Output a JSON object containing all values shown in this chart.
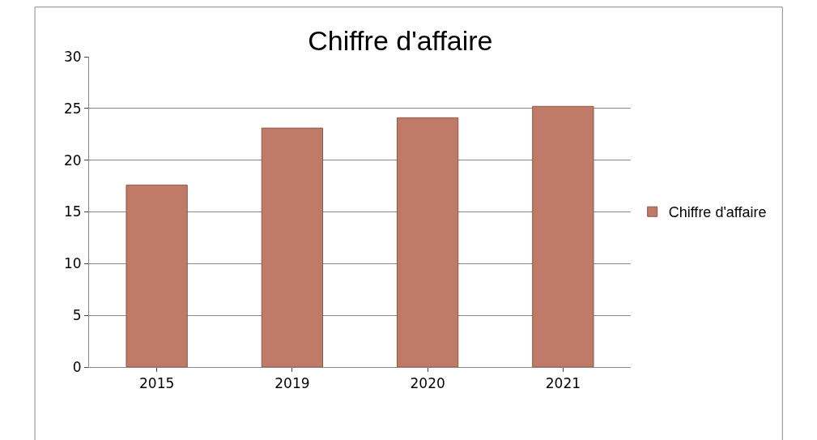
{
  "chart_data": {
    "type": "bar",
    "title": "Chiffre d'affaire",
    "categories": [
      "2015",
      "2019",
      "2020",
      "2021"
    ],
    "series": [
      {
        "name": "Chiffre d'affaire",
        "color": "#c07a68",
        "values": [
          17.6,
          23.1,
          24.1,
          25.2
        ]
      }
    ],
    "ylim": [
      0,
      30
    ],
    "yticks": [
      0,
      5,
      10,
      15,
      20,
      25,
      30
    ],
    "grid": "y",
    "legend": "right"
  }
}
